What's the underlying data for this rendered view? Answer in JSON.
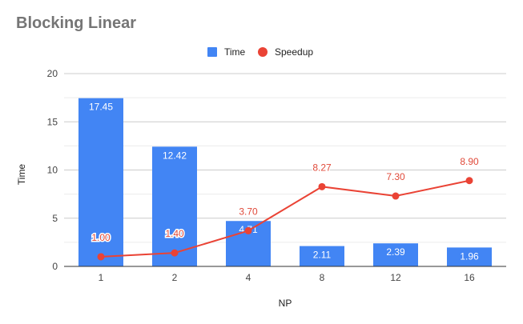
{
  "chart_data": {
    "type": "bar",
    "title": "Blocking Linear",
    "xlabel": "NP",
    "ylabel": "Time",
    "categories": [
      "1",
      "2",
      "4",
      "8",
      "12",
      "16"
    ],
    "ylim": [
      0,
      20
    ],
    "yticks": [
      0,
      5,
      10,
      15,
      20
    ],
    "grid": true,
    "legend_position": "top",
    "series": [
      {
        "name": "Time",
        "type": "bar",
        "color": "#4285f4",
        "values": [
          17.45,
          12.42,
          4.71,
          2.11,
          2.39,
          1.96
        ],
        "labels": [
          "17.45",
          "12.42",
          "4.71",
          "2.11",
          "2.39",
          "1.96"
        ]
      },
      {
        "name": "Speedup",
        "type": "line",
        "color": "#ea4335",
        "values": [
          1.0,
          1.4,
          3.7,
          8.27,
          7.3,
          8.9
        ],
        "labels": [
          "1.00",
          "1.40",
          "3.70",
          "8.27",
          "7.30",
          "8.90"
        ]
      }
    ]
  }
}
